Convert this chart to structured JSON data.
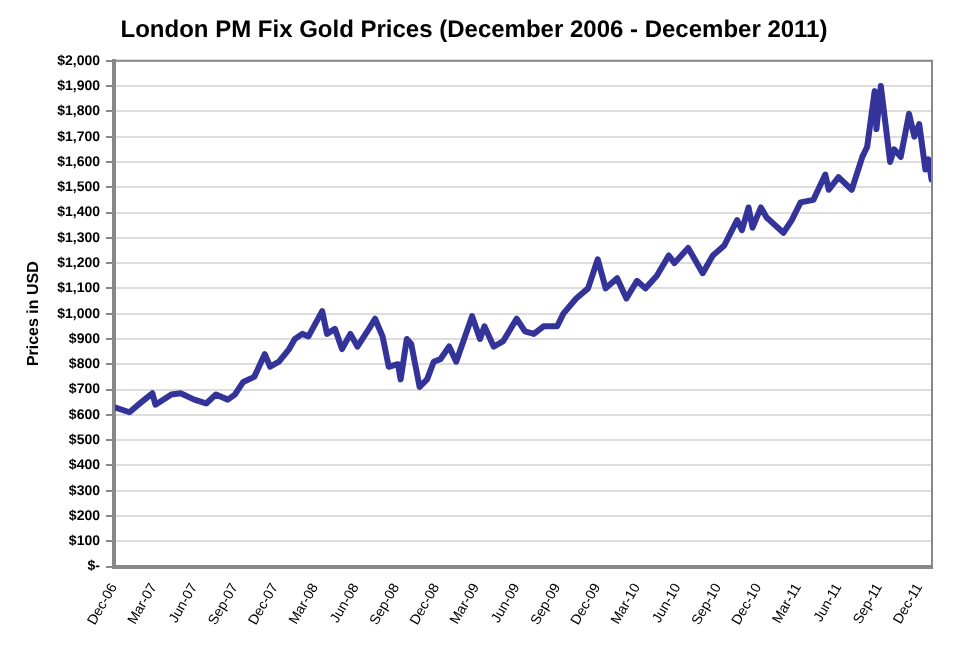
{
  "chart_data": {
    "type": "line",
    "title": "London PM Fix Gold Prices (December 2006 - December 2011)",
    "ylabel": "Prices in USD",
    "x": [
      "2006-12-01",
      "2007-01-05",
      "2007-02-01",
      "2007-02-26",
      "2007-03-05",
      "2007-04-10",
      "2007-05-01",
      "2007-06-01",
      "2007-06-28",
      "2007-07-20",
      "2007-08-16",
      "2007-09-01",
      "2007-09-20",
      "2007-10-15",
      "2007-11-08",
      "2007-11-20",
      "2007-12-10",
      "2008-01-02",
      "2008-01-15",
      "2008-02-01",
      "2008-02-15",
      "2008-03-17",
      "2008-03-28",
      "2008-04-15",
      "2008-05-01",
      "2008-05-20",
      "2008-06-05",
      "2008-07-01",
      "2008-07-15",
      "2008-08-01",
      "2008-08-15",
      "2008-09-05",
      "2008-09-11",
      "2008-09-25",
      "2008-10-05",
      "2008-10-24",
      "2008-11-10",
      "2008-11-25",
      "2008-12-10",
      "2008-12-30",
      "2009-01-15",
      "2009-02-20",
      "2009-03-10",
      "2009-03-20",
      "2009-04-10",
      "2009-05-01",
      "2009-06-01",
      "2009-06-20",
      "2009-07-10",
      "2009-08-01",
      "2009-09-01",
      "2009-09-15",
      "2009-10-14",
      "2009-11-10",
      "2009-12-02",
      "2009-12-20",
      "2010-01-15",
      "2010-02-05",
      "2010-03-01",
      "2010-03-20",
      "2010-04-15",
      "2010-05-12",
      "2010-05-25",
      "2010-06-25",
      "2010-07-28",
      "2010-08-20",
      "2010-09-15",
      "2010-10-14",
      "2010-10-25",
      "2010-11-09",
      "2010-11-18",
      "2010-12-07",
      "2010-12-20",
      "2011-01-27",
      "2011-02-15",
      "2011-03-07",
      "2011-04-05",
      "2011-05-02",
      "2011-05-10",
      "2011-06-01",
      "2011-07-01",
      "2011-07-25",
      "2011-08-05",
      "2011-08-22",
      "2011-08-26",
      "2011-09-05",
      "2011-09-26",
      "2011-10-05",
      "2011-10-20",
      "2011-11-08",
      "2011-11-20",
      "2011-12-01",
      "2011-12-15",
      "2011-12-22",
      "2011-12-29"
    ],
    "series": [
      {
        "color": "#333399",
        "values": [
          630,
          610,
          650,
          685,
          640,
          680,
          685,
          660,
          645,
          680,
          660,
          680,
          730,
          750,
          840,
          790,
          810,
          860,
          900,
          920,
          910,
          1010,
          920,
          940,
          860,
          920,
          870,
          940,
          980,
          910,
          790,
          800,
          740,
          900,
          880,
          710,
          740,
          810,
          820,
          870,
          810,
          990,
          900,
          950,
          870,
          890,
          980,
          930,
          920,
          950,
          950,
          1000,
          1060,
          1100,
          1215,
          1100,
          1140,
          1060,
          1130,
          1100,
          1150,
          1230,
          1200,
          1260,
          1160,
          1230,
          1270,
          1370,
          1330,
          1420,
          1340,
          1420,
          1380,
          1320,
          1370,
          1440,
          1450,
          1550,
          1490,
          1540,
          1490,
          1620,
          1660,
          1880,
          1730,
          1900,
          1600,
          1650,
          1620,
          1790,
          1700,
          1750,
          1570,
          1610,
          1530
        ]
      }
    ],
    "xlim": [
      "2006-12-01",
      "2011-12-30"
    ],
    "xticks": [
      {
        "value": "2006-12-01",
        "label": "Dec-06"
      },
      {
        "value": "2007-03-01",
        "label": "Mar-07"
      },
      {
        "value": "2007-06-01",
        "label": "Jun-07"
      },
      {
        "value": "2007-09-01",
        "label": "Sep-07"
      },
      {
        "value": "2007-12-01",
        "label": "Dec-07"
      },
      {
        "value": "2008-03-01",
        "label": "Mar-08"
      },
      {
        "value": "2008-06-01",
        "label": "Jun-08"
      },
      {
        "value": "2008-09-01",
        "label": "Sep-08"
      },
      {
        "value": "2008-12-01",
        "label": "Dec-08"
      },
      {
        "value": "2009-03-01",
        "label": "Mar-09"
      },
      {
        "value": "2009-06-01",
        "label": "Jun-09"
      },
      {
        "value": "2009-09-01",
        "label": "Sep-09"
      },
      {
        "value": "2009-12-01",
        "label": "Dec-09"
      },
      {
        "value": "2010-03-01",
        "label": "Mar-10"
      },
      {
        "value": "2010-06-01",
        "label": "Jun-10"
      },
      {
        "value": "2010-09-01",
        "label": "Sep-10"
      },
      {
        "value": "2010-12-01",
        "label": "Dec-10"
      },
      {
        "value": "2011-03-01",
        "label": "Mar-11"
      },
      {
        "value": "2011-06-01",
        "label": "Jun-11"
      },
      {
        "value": "2011-09-01",
        "label": "Sep-11"
      },
      {
        "value": "2011-12-01",
        "label": "Dec-11"
      }
    ],
    "ylim": [
      0,
      2000
    ],
    "yticks": [
      {
        "value": 0,
        "label": "$-"
      },
      {
        "value": 100,
        "label": "$100"
      },
      {
        "value": 200,
        "label": "$200"
      },
      {
        "value": 300,
        "label": "$300"
      },
      {
        "value": 400,
        "label": "$400"
      },
      {
        "value": 500,
        "label": "$500"
      },
      {
        "value": 600,
        "label": "$600"
      },
      {
        "value": 700,
        "label": "$700"
      },
      {
        "value": 800,
        "label": "$800"
      },
      {
        "value": 900,
        "label": "$900"
      },
      {
        "value": 1000,
        "label": "$1,000"
      },
      {
        "value": 1100,
        "label": "$1,100"
      },
      {
        "value": 1200,
        "label": "$1,200"
      },
      {
        "value": 1300,
        "label": "$1,300"
      },
      {
        "value": 1400,
        "label": "$1,400"
      },
      {
        "value": 1500,
        "label": "$1,500"
      },
      {
        "value": 1600,
        "label": "$1,600"
      },
      {
        "value": 1700,
        "label": "$1,700"
      },
      {
        "value": 1800,
        "label": "$1,800"
      },
      {
        "value": 1900,
        "label": "$1,900"
      },
      {
        "value": 2000,
        "label": "$2,000"
      }
    ],
    "grid": "y",
    "legend": false,
    "marker": "none",
    "line_style": "solid"
  }
}
